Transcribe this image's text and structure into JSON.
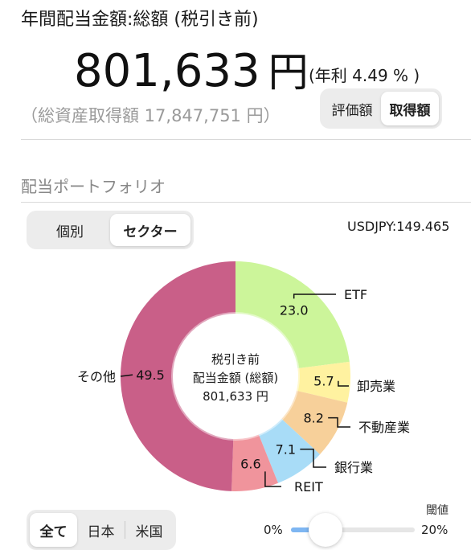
{
  "header": {
    "title": "年間配当金額:総額 (税引き前)",
    "total_amount": "801,633",
    "total_unit": "円",
    "yield_text": "(年利 4.49 % )",
    "asset_text": "（総資産取得額 17,847,751 円）"
  },
  "valuation_toggle": {
    "options": [
      "評価額",
      "取得額"
    ],
    "selected": "取得額"
  },
  "portfolio": {
    "section_title": "配当ポートフォリオ",
    "view_toggle": {
      "options": [
        "個別",
        "セクター"
      ],
      "selected": "セクター"
    },
    "fx_rate": "USDJPY:149.465"
  },
  "chart_data": {
    "type": "pie",
    "donut": true,
    "center_label": [
      "税引き前",
      "配当金額 (総額)",
      "801,633 円"
    ],
    "slices": [
      {
        "label": "ETF",
        "value": 23.0,
        "value_text": "23.0",
        "color": "#ccf59a"
      },
      {
        "label": "卸売業",
        "value": 5.7,
        "value_text": "5.7",
        "color": "#fff2a0"
      },
      {
        "label": "不動産業",
        "value": 8.2,
        "value_text": "8.2",
        "color": "#f7d09a"
      },
      {
        "label": "銀行業",
        "value": 7.1,
        "value_text": "7.1",
        "color": "#a8dcf7"
      },
      {
        "label": "REIT",
        "value": 6.6,
        "value_text": "6.6",
        "color": "#f0949c"
      },
      {
        "label": "その他",
        "value": 49.5,
        "value_text": "49.5",
        "color": "#c95f88"
      }
    ]
  },
  "region_filter": {
    "options": [
      "全て",
      "日本",
      "米国"
    ],
    "selected": "全て"
  },
  "threshold": {
    "label": "閾値",
    "min_label": "0%",
    "max_label": "20%",
    "value_fraction": 0.28
  }
}
